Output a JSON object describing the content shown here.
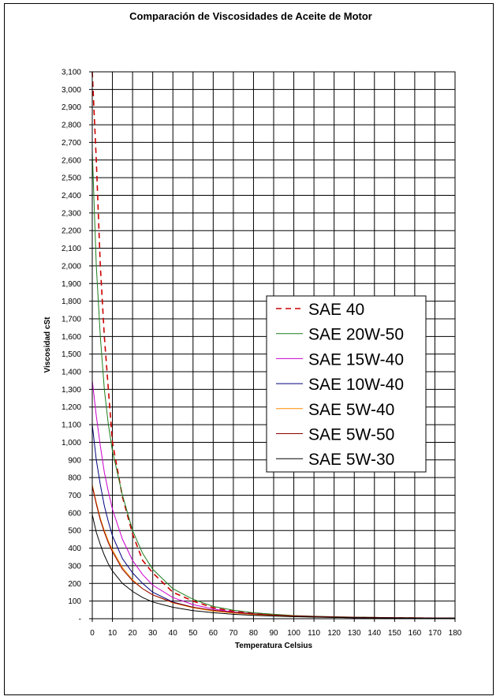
{
  "chart_data": {
    "type": "line",
    "title": "Comparación de Viscosidades de Aceite de Motor",
    "xlabel": "Temperatura Celsius",
    "ylabel": "Viscosidad cSt",
    "xlim": [
      0,
      180
    ],
    "ylim": [
      0,
      3100
    ],
    "x_ticks": [
      "0",
      "10",
      "20",
      "30",
      "40",
      "50",
      "60",
      "70",
      "80",
      "90",
      "100",
      "110",
      "120",
      "130",
      "140",
      "150",
      "160",
      "170",
      "180"
    ],
    "y_ticks": [
      "-",
      "100",
      "200",
      "300",
      "400",
      "500",
      "600",
      "700",
      "800",
      "900",
      "1,000",
      "1,100",
      "1,200",
      "1,300",
      "1,400",
      "1,500",
      "1,600",
      "1,700",
      "1,800",
      "1,900",
      "2,000",
      "2,100",
      "2,200",
      "2,300",
      "2,400",
      "2,500",
      "2,600",
      "2,700",
      "2,800",
      "2,900",
      "3,000",
      "3,100"
    ],
    "grid": true,
    "legend_position": "right",
    "series": [
      {
        "name": "SAE 40",
        "color": "#cc0000",
        "dash": true,
        "x": [
          0,
          2,
          4,
          6,
          8,
          10,
          15,
          20,
          25,
          30,
          40,
          50,
          60,
          70,
          80,
          90,
          100,
          110,
          120,
          130,
          140,
          150,
          160,
          170,
          180
        ],
        "y": [
          3100,
          2600,
          2000,
          1600,
          1300,
          1000,
          690,
          480,
          330,
          260,
          150,
          100,
          62,
          42,
          30,
          21,
          15,
          11,
          9,
          7,
          6,
          5,
          4,
          3,
          3
        ]
      },
      {
        "name": "SAE 20W-50",
        "color": "#1e7d1e",
        "dash": false,
        "x": [
          0,
          2,
          4,
          6,
          8,
          10,
          15,
          20,
          25,
          30,
          40,
          50,
          60,
          70,
          80,
          90,
          100,
          110,
          120,
          130,
          140,
          150,
          160,
          170,
          180
        ],
        "y": [
          2650,
          2000,
          1600,
          1300,
          1100,
          950,
          700,
          500,
          370,
          280,
          170,
          110,
          70,
          48,
          34,
          25,
          18,
          14,
          11,
          9,
          7,
          6,
          5,
          4,
          3
        ]
      },
      {
        "name": "SAE 15W-40",
        "color": "#cc00cc",
        "dash": false,
        "x": [
          0,
          2,
          4,
          6,
          8,
          10,
          15,
          20,
          25,
          30,
          40,
          50,
          60,
          70,
          80,
          90,
          100,
          110,
          120,
          130,
          140,
          150,
          160,
          170,
          180
        ],
        "y": [
          1350,
          1150,
          980,
          830,
          720,
          620,
          450,
          330,
          250,
          190,
          120,
          80,
          55,
          38,
          28,
          20,
          15,
          11,
          9,
          7,
          6,
          5,
          4,
          3,
          3
        ]
      },
      {
        "name": "SAE 10W-40",
        "color": "#000080",
        "dash": false,
        "x": [
          0,
          2,
          4,
          6,
          8,
          10,
          15,
          20,
          25,
          30,
          40,
          50,
          60,
          70,
          80,
          90,
          100,
          110,
          120,
          130,
          140,
          150,
          160,
          170,
          180
        ],
        "y": [
          1100,
          900,
          760,
          640,
          550,
          470,
          340,
          260,
          200,
          150,
          95,
          65,
          46,
          33,
          25,
          18,
          14,
          10,
          8,
          6,
          5,
          4,
          4,
          3,
          3
        ]
      },
      {
        "name": "SAE 5W-40",
        "color": "#ff8c00",
        "dash": false,
        "x": [
          0,
          2,
          4,
          6,
          8,
          10,
          15,
          20,
          25,
          30,
          40,
          50,
          60,
          70,
          80,
          90,
          100,
          110,
          120,
          130,
          140,
          150,
          160,
          170,
          180
        ],
        "y": [
          760,
          660,
          570,
          500,
          440,
          390,
          290,
          220,
          170,
          135,
          90,
          62,
          44,
          32,
          24,
          18,
          14,
          11,
          8,
          7,
          5,
          4,
          4,
          3,
          3
        ]
      },
      {
        "name": "SAE 5W-50",
        "color": "#8b0000",
        "dash": false,
        "x": [
          0,
          2,
          4,
          6,
          8,
          10,
          15,
          20,
          25,
          30,
          40,
          50,
          60,
          70,
          80,
          90,
          100,
          110,
          120,
          130,
          140,
          150,
          160,
          170,
          180
        ],
        "y": [
          750,
          650,
          560,
          490,
          430,
          380,
          280,
          215,
          170,
          135,
          92,
          65,
          48,
          36,
          27,
          21,
          16,
          13,
          10,
          8,
          7,
          6,
          5,
          4,
          4
        ]
      },
      {
        "name": "SAE 5W-30",
        "color": "#000000",
        "dash": false,
        "x": [
          0,
          2,
          4,
          6,
          8,
          10,
          15,
          20,
          25,
          30,
          40,
          50,
          60,
          70,
          80,
          90,
          100,
          110,
          120,
          130,
          140,
          150,
          160,
          170,
          180
        ],
        "y": [
          590,
          490,
          420,
          360,
          310,
          270,
          200,
          155,
          120,
          95,
          65,
          46,
          34,
          25,
          19,
          15,
          11,
          9,
          7,
          6,
          5,
          4,
          3,
          3,
          3
        ]
      }
    ]
  }
}
